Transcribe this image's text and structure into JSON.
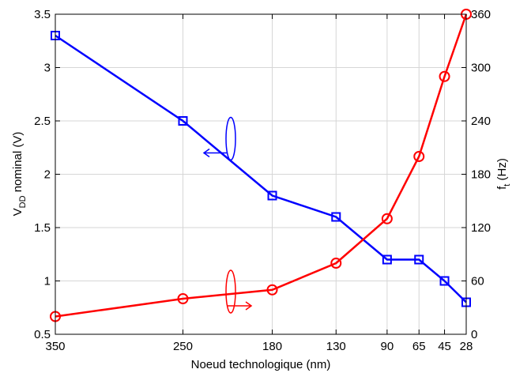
{
  "chart_data": {
    "type": "line",
    "title": "",
    "xlabel": "Noeud technologique (nm)",
    "ylabel_left": {
      "main": "V",
      "sub": "DD",
      "rest": " nominal (V)"
    },
    "ylabel_right": {
      "main": "f",
      "sub": "t",
      "rest": " (Hz)"
    },
    "categories": [
      "350",
      "250",
      "180",
      "130",
      "90",
      "65",
      "45",
      "28"
    ],
    "x_positions_nm": [
      350,
      250,
      180,
      130,
      90,
      65,
      45,
      28
    ],
    "x_axis_reversed": true,
    "ylim_left": [
      0.5,
      3.5
    ],
    "yticks_left": [
      "0.5",
      "1",
      "1.5",
      "2",
      "2.5",
      "3",
      "3.5"
    ],
    "ylim_right": [
      0,
      360
    ],
    "yticks_right": [
      "0",
      "60",
      "120",
      "180",
      "240",
      "300",
      "360"
    ],
    "grid": true,
    "series": [
      {
        "axis": "left",
        "color": "#0000ff",
        "marker": "square",
        "values": [
          3.3,
          2.5,
          1.8,
          1.6,
          1.2,
          1.2,
          1.0,
          0.8
        ]
      },
      {
        "axis": "right",
        "color": "#ff0000",
        "marker": "circle",
        "values": [
          20,
          40,
          50,
          80,
          130,
          200,
          290,
          360
        ]
      }
    ],
    "annotations": [
      {
        "series": "blue",
        "meaning": "ellipse with arrow pointing to left axis",
        "at_x_nm": 215,
        "at_y": 2.2
      },
      {
        "series": "red",
        "meaning": "ellipse with arrow pointing to right axis",
        "at_x_nm": 215,
        "at_y": 32
      }
    ]
  }
}
